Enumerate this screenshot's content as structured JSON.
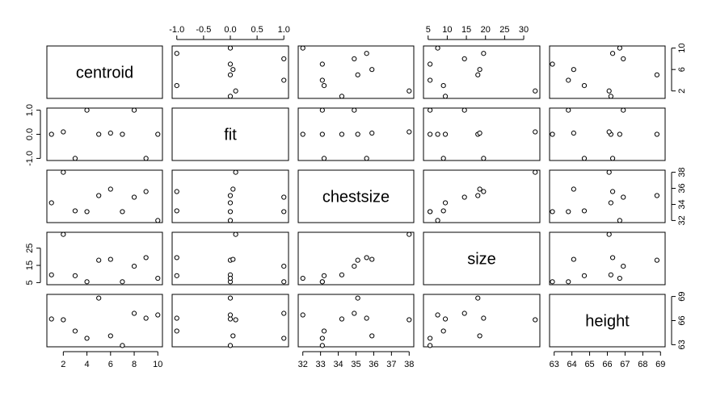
{
  "chart_data": {
    "type": "scatter",
    "subtype": "pairs-matrix",
    "variables": [
      "centroid",
      "fit",
      "chestsize",
      "size",
      "height"
    ],
    "ranges": {
      "centroid": [
        1,
        10
      ],
      "fit": [
        -1,
        1
      ],
      "chestsize": [
        32,
        38
      ],
      "size": [
        5,
        33
      ],
      "height": [
        63,
        69
      ]
    },
    "ticks": {
      "centroid": [
        "2",
        "4",
        "6",
        "8",
        "10"
      ],
      "fit": [
        "-1.0",
        "-0.5",
        "0.0",
        "0.5",
        "1.0"
      ],
      "chestsize": [
        "32",
        "33",
        "34",
        "35",
        "36",
        "37",
        "38"
      ],
      "size": [
        "5",
        "10",
        "15",
        "20",
        "25",
        "30"
      ],
      "height": [
        "63",
        "64",
        "65",
        "66",
        "67",
        "68",
        "69"
      ]
    },
    "left_ticks": {
      "fit": [
        "-1.0",
        "0.0",
        "1.0"
      ],
      "size": [
        "5",
        "15",
        "25"
      ]
    },
    "right_ticks": {
      "centroid": [
        "2",
        "6",
        "10"
      ],
      "chestsize": [
        "32",
        "34",
        "36",
        "38"
      ],
      "height": [
        "63",
        "66",
        "69"
      ]
    },
    "observations": {
      "centroid": [
        1,
        2,
        3,
        4,
        5,
        6,
        7,
        8,
        9,
        10
      ],
      "fit": [
        0,
        0.1,
        -1,
        1,
        0,
        0.05,
        0,
        1,
        -1,
        0
      ],
      "chestsize": [
        34.2,
        38,
        33.2,
        33.1,
        35.1,
        35.9,
        33.1,
        34.9,
        35.6,
        32
      ],
      "size": [
        9.5,
        33,
        9,
        5.5,
        18,
        18.5,
        5.5,
        14.5,
        19.5,
        7.5
      ],
      "height": [
        66.2,
        66.1,
        64.7,
        63.8,
        68.8,
        64.1,
        62.9,
        66.9,
        66.3,
        66.7
      ]
    }
  }
}
